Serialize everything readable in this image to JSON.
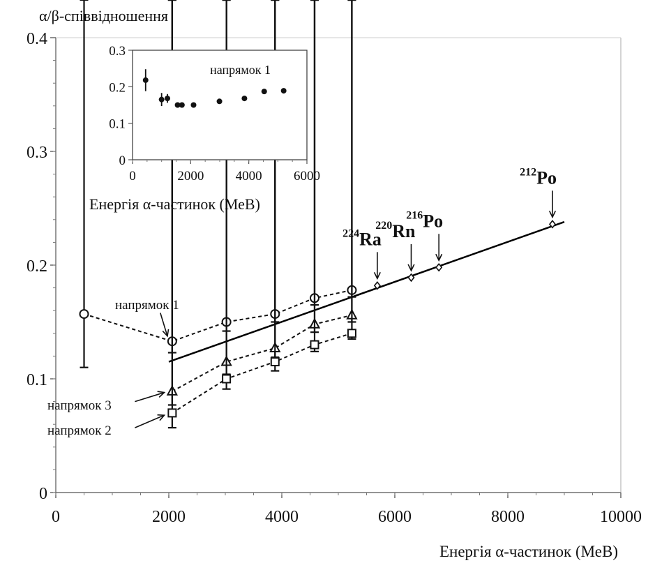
{
  "chart_data": [
    {
      "type": "scatter",
      "ylabel": "α/β-співвідношення",
      "xlabel": "Енергія α-частинок (МеВ)",
      "xlim": [
        0,
        10000
      ],
      "ylim": [
        0,
        0.4
      ],
      "xticks": [
        0,
        2000,
        4000,
        6000,
        8000,
        10000
      ],
      "yticks": [
        0,
        0.1,
        0.2,
        0.3,
        0.4
      ],
      "grid": false,
      "series": [
        {
          "name": "напрямок 1",
          "marker": "circle",
          "line": "dashed",
          "x": [
            500,
            2060,
            3020,
            3880,
            4580,
            5240
          ],
          "y": [
            0.157,
            0.133,
            0.15,
            0.157,
            0.171,
            0.178
          ],
          "err": [
            0.047,
            0.01,
            0.008,
            0.007,
            0.006,
            0.006
          ]
        },
        {
          "name": "напрямок 3",
          "marker": "triangle",
          "line": "dashed",
          "x": [
            2060,
            3020,
            3880,
            4580,
            5240
          ],
          "y": [
            0.089,
            0.115,
            0.127,
            0.148,
            0.156
          ],
          "err": [
            0.012,
            0.011,
            0.008,
            0.007,
            0.006
          ]
        },
        {
          "name": "напрямок 2",
          "marker": "square",
          "line": "dashed",
          "x": [
            2060,
            3020,
            3880,
            4580,
            5240
          ],
          "y": [
            0.07,
            0.1,
            0.115,
            0.13,
            0.14
          ],
          "err": [
            0.013,
            0.009,
            0.008,
            0.006,
            0.005
          ]
        },
        {
          "name": "",
          "marker": "diamond",
          "line": "none",
          "x": [
            5690,
            6290,
            6780,
            8790
          ],
          "y": [
            0.182,
            0.189,
            0.198,
            0.236
          ],
          "err": [
            0,
            0,
            0,
            0
          ]
        }
      ],
      "fit_line": {
        "x": [
          2000,
          9000
        ],
        "y": [
          0.115,
          0.238
        ]
      },
      "annotations": [
        {
          "text": "напрямок 1",
          "x": 1850,
          "y": 0.168,
          "arrow_to": [
            2000,
            0.14
          ]
        },
        {
          "text": "напрямок 3",
          "x": 1100,
          "y": 0.075,
          "arrow_to": [
            1920,
            0.088
          ]
        },
        {
          "text": "напрямок 2",
          "x": 1100,
          "y": 0.055,
          "arrow_to": [
            1920,
            0.068
          ]
        }
      ],
      "isotopes": [
        {
          "mass": "224",
          "symbol": "Ra",
          "x": 5690,
          "y": 0.182
        },
        {
          "mass": "220",
          "symbol": "Rn",
          "x": 6290,
          "y": 0.189
        },
        {
          "mass": "216",
          "symbol": "Po",
          "x": 6780,
          "y": 0.198
        },
        {
          "mass": "212",
          "symbol": "Po",
          "x": 8790,
          "y": 0.236
        }
      ]
    },
    {
      "type": "scatter",
      "xlabel": "Енергія α-частинок (МеВ)",
      "legend": "напрямок 1",
      "xlim": [
        0,
        6000
      ],
      "ylim": [
        0,
        0.3
      ],
      "xticks": [
        0,
        2000,
        4000,
        6000
      ],
      "yticks": [
        0,
        0.1,
        0.2,
        0.3
      ],
      "grid": false,
      "series": [
        {
          "name": "напрямок 1",
          "marker": "filled-circle",
          "x": [
            450,
            1000,
            1200,
            1550,
            1700,
            2100,
            2990,
            3850,
            4530,
            5200
          ],
          "y": [
            0.218,
            0.165,
            0.168,
            0.15,
            0.15,
            0.15,
            0.16,
            0.168,
            0.187,
            0.189
          ],
          "err": [
            0.03,
            0.018,
            0.012,
            0,
            0,
            0,
            0,
            0,
            0,
            0
          ]
        }
      ]
    }
  ]
}
